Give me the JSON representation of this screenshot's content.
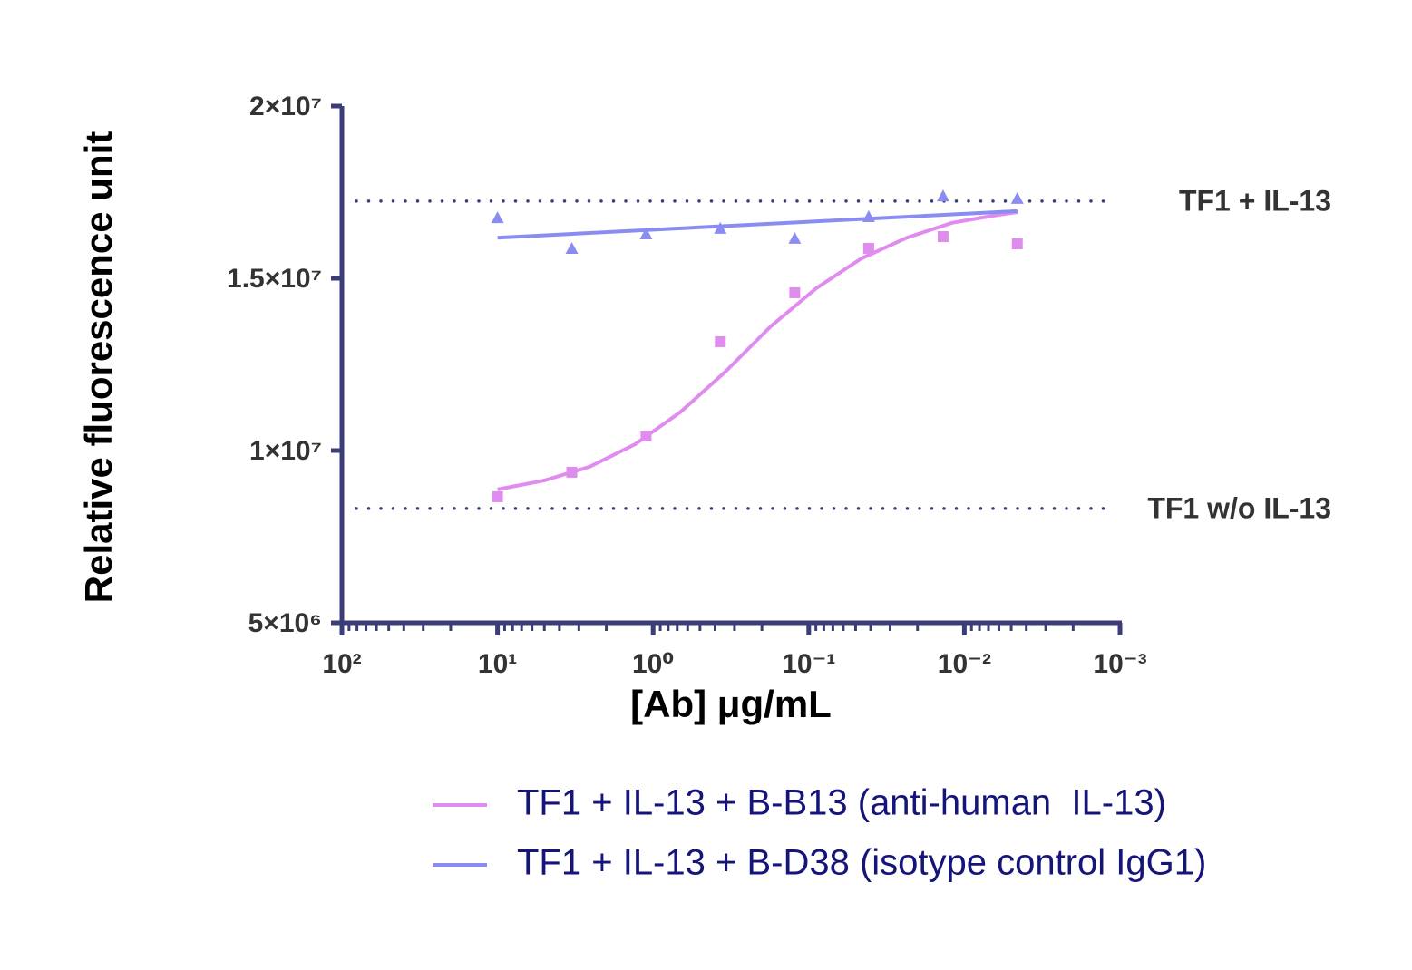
{
  "chart_data": {
    "type": "scatter",
    "xlabel": "[Ab] μg/mL",
    "ylabel": "Relative fluorescence unit",
    "log_x": true,
    "xlim": [
      100,
      0.001
    ],
    "xticks": [
      {
        "value": 100,
        "label": "10²"
      },
      {
        "value": 10,
        "label": "10¹"
      },
      {
        "value": 1,
        "label": "10⁰"
      },
      {
        "value": 0.1,
        "label": "10⁻¹"
      },
      {
        "value": 0.01,
        "label": "10⁻²"
      },
      {
        "value": 0.001,
        "label": "10⁻³"
      }
    ],
    "ylim": [
      5000000,
      20000000
    ],
    "yticks": [
      {
        "value": 5000000,
        "label": "5×10⁶"
      },
      {
        "value": 10000000,
        "label": "1×10⁷"
      },
      {
        "value": 15000000,
        "label": "1.5×10⁷"
      },
      {
        "value": 20000000,
        "label": "2×10⁷"
      }
    ],
    "axis_color": "#3a3d78",
    "legend": "bottom",
    "x": [
      10,
      3.33,
      1.11,
      0.37,
      0.123,
      0.0412,
      0.0137,
      0.00457
    ],
    "series": [
      {
        "name": "TF1 + IL-13 + B-B13 (anti-human  IL-13)",
        "color": "#e08cee",
        "marker": "square",
        "values": [
          8660000,
          9370000,
          10420000,
          13160000,
          14580000,
          15870000,
          16210000,
          16000000
        ],
        "fit_x": [
          10,
          5.02,
          2.56,
          1.31,
          0.67,
          0.343,
          0.175,
          0.0895,
          0.0458,
          0.0234,
          0.012,
          0.00612,
          0.00457
        ],
        "fit": [
          8870000,
          9130000,
          9530000,
          10180000,
          11110000,
          12290000,
          13610000,
          14710000,
          15580000,
          16180000,
          16610000,
          16840000,
          16920000
        ]
      },
      {
        "name": "TF1 + IL-13 + B-D38 (isotype control IgG1)",
        "color": "#8a8cf2",
        "marker": "triangle",
        "values": [
          16760000,
          15870000,
          16290000,
          16450000,
          16160000,
          16790000,
          17390000,
          17320000
        ],
        "fit_x": [
          10,
          0.00457
        ],
        "fit": [
          16180000,
          16950000
        ]
      }
    ],
    "reference_lines": [
      {
        "label": "TF1 + IL-13",
        "value": 17240000
      },
      {
        "label": "TF1 w/o IL-13",
        "value": 8320000
      }
    ]
  }
}
